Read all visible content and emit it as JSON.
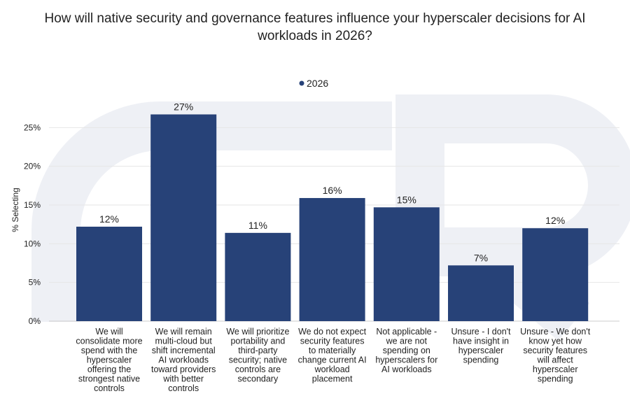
{
  "chart_data": {
    "type": "bar",
    "title_lines": [
      "How will native security and governance features influence your hyperscaler decisions for AI",
      "workloads in 2026?"
    ],
    "ylabel": "% Selecting",
    "ylim": [
      0,
      30
    ],
    "yticks": [
      0,
      5,
      10,
      15,
      20,
      25
    ],
    "ytick_labels": [
      "0%",
      "5%",
      "10%",
      "15%",
      "20%",
      "25%"
    ],
    "grid": true,
    "legend_position": "top-center",
    "colors": {
      "bar": "#274278",
      "grid": "#e6e6e6",
      "watermark": "#eef0f5"
    },
    "series": [
      {
        "name": "2026",
        "values": [
          12.2,
          26.7,
          11.4,
          15.9,
          14.7,
          7.2,
          12.0
        ],
        "labels": [
          "12%",
          "27%",
          "11%",
          "16%",
          "15%",
          "7%",
          "12%"
        ]
      }
    ],
    "categories": [
      [
        "We will",
        "consolidate more",
        "spend with the",
        "hyperscaler",
        "offering the",
        "strongest native",
        "controls"
      ],
      [
        "We will remain",
        "multi-cloud but",
        "shift incremental",
        "AI workloads",
        "toward providers",
        "with better",
        "controls"
      ],
      [
        "We will prioritize",
        "portability and",
        "third-party",
        "security; native",
        "controls are",
        "secondary"
      ],
      [
        "We do not expect",
        "security features",
        "to materially",
        "change current AI",
        "workload",
        "placement"
      ],
      [
        "Not applicable -",
        "we are not",
        "spending on",
        "hyperscalers for",
        "AI workloads"
      ],
      [
        "Unsure - I don't",
        "have insight in",
        "hyperscaler",
        "spending"
      ],
      [
        "Unsure - We don't",
        "know yet how",
        "security features",
        "will affect",
        "hyperscaler",
        "spending"
      ]
    ]
  }
}
